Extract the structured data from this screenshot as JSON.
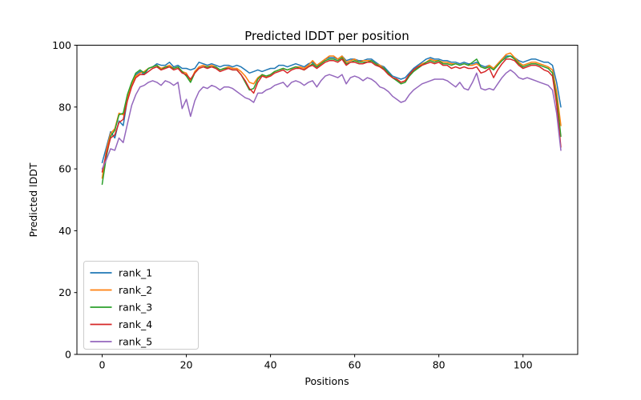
{
  "figure": {
    "background": "#ffffff",
    "title": "Predicted lDDT per position",
    "xlabel": "Positions",
    "ylabel": "Predicted lDDT"
  },
  "chart_data": {
    "type": "line",
    "title": "Predicted lDDT per position",
    "xlabel": "Positions",
    "ylabel": "Predicted lDDT",
    "xlim": [
      -6,
      113
    ],
    "ylim": [
      0,
      100
    ],
    "xticks": [
      0,
      20,
      40,
      60,
      80,
      100
    ],
    "yticks": [
      0,
      20,
      40,
      60,
      80,
      100
    ],
    "grid": false,
    "legend_position": "lower left",
    "x": [
      0,
      1,
      2,
      3,
      4,
      5,
      6,
      7,
      8,
      9,
      10,
      11,
      12,
      13,
      14,
      15,
      16,
      17,
      18,
      19,
      20,
      21,
      22,
      23,
      24,
      25,
      26,
      27,
      28,
      29,
      30,
      31,
      32,
      33,
      34,
      35,
      36,
      37,
      38,
      39,
      40,
      41,
      42,
      43,
      44,
      45,
      46,
      47,
      48,
      49,
      50,
      51,
      52,
      53,
      54,
      55,
      56,
      57,
      58,
      59,
      60,
      61,
      62,
      63,
      64,
      65,
      66,
      67,
      68,
      69,
      70,
      71,
      72,
      73,
      74,
      75,
      76,
      77,
      78,
      79,
      80,
      81,
      82,
      83,
      84,
      85,
      86,
      87,
      88,
      89,
      90,
      91,
      92,
      93,
      94,
      95,
      96,
      97,
      98,
      99,
      100,
      101,
      102,
      103,
      104,
      105,
      106,
      107,
      108,
      109
    ],
    "series": [
      {
        "name": "rank_1",
        "color": "#1f77b4",
        "values": [
          62,
          67,
          72,
          70,
          75.5,
          74,
          82.5,
          87.5,
          90.5,
          91.5,
          90.5,
          92.5,
          93,
          94,
          93.5,
          93.5,
          94.5,
          93,
          93.5,
          92.5,
          92.5,
          92,
          92.5,
          94.5,
          94,
          93.5,
          94,
          93.5,
          93,
          93.5,
          93.5,
          93,
          93.5,
          93,
          92,
          91,
          91.5,
          92,
          91.5,
          92,
          92.5,
          92.5,
          93.5,
          93.5,
          93,
          93.5,
          94,
          93.5,
          93,
          94,
          94.5,
          93.5,
          94.5,
          95.5,
          96,
          96,
          95.5,
          96.5,
          95,
          95.5,
          95.5,
          95,
          95,
          95.5,
          95.5,
          94.5,
          93.5,
          93,
          91.5,
          90,
          89.5,
          89,
          89.5,
          91,
          92.5,
          93.5,
          94.5,
          95.5,
          96,
          95.5,
          95.5,
          95,
          95,
          94.5,
          94.5,
          94,
          94.5,
          94,
          94,
          94.5,
          93.5,
          93,
          93.5,
          92.5,
          94,
          95.5,
          96.5,
          96.5,
          96,
          95,
          94.5,
          95,
          95.5,
          95.5,
          95,
          94.5,
          94.5,
          93.5,
          88,
          80
        ]
      },
      {
        "name": "rank_2",
        "color": "#ff7f0e",
        "values": [
          57,
          66,
          71.5,
          73,
          78,
          77.5,
          83,
          87.5,
          90,
          91,
          91.5,
          92.5,
          93,
          93.5,
          92.5,
          93,
          93.5,
          92.5,
          93,
          91.5,
          91,
          88.5,
          91.5,
          93,
          93.5,
          93,
          93.5,
          93,
          92,
          92.5,
          93,
          92.5,
          92.5,
          91.5,
          90,
          88,
          87.5,
          89.5,
          90.5,
          89.5,
          90.5,
          91.5,
          92,
          92.5,
          92,
          92.5,
          93,
          93,
          92.5,
          93.5,
          95,
          93.5,
          94.5,
          95.5,
          96.5,
          96.5,
          95.5,
          96.5,
          94.5,
          95,
          95.5,
          94.5,
          95,
          95,
          95,
          94,
          93.5,
          92.5,
          91,
          89.5,
          89,
          88,
          88.5,
          90.5,
          92,
          93,
          94,
          94.5,
          95.5,
          95,
          95,
          94.5,
          94.5,
          94,
          94,
          93.5,
          94,
          93.5,
          93.5,
          94,
          93,
          92.5,
          93.5,
          92.5,
          94,
          95.5,
          97,
          97.5,
          96,
          94.5,
          93.5,
          94,
          94.5,
          94.5,
          94,
          93.5,
          93,
          92,
          85,
          74
        ]
      },
      {
        "name": "rank_3",
        "color": "#2ca02c",
        "values": [
          55,
          64,
          70.5,
          72.5,
          77.5,
          78,
          84,
          88,
          91,
          92,
          91,
          92.5,
          93,
          93.5,
          92,
          93,
          93,
          92.5,
          93,
          91.5,
          90,
          88,
          91,
          92.5,
          93,
          93,
          93,
          93,
          92,
          92.5,
          92.5,
          92,
          92,
          90.5,
          88,
          85.5,
          86,
          89,
          90.5,
          90,
          90.5,
          91.5,
          92,
          92.5,
          92,
          92.5,
          93,
          92.5,
          92,
          93,
          94,
          93,
          94,
          95,
          95.5,
          95.5,
          95,
          96,
          94,
          94.5,
          95,
          94.5,
          94.5,
          94.5,
          95,
          94,
          93,
          92.5,
          91,
          89.5,
          88.5,
          87.5,
          88,
          90,
          91.5,
          92.5,
          93.5,
          94.5,
          95,
          94.5,
          95,
          94,
          94,
          93.5,
          94,
          93.5,
          94,
          93.5,
          94.5,
          95.5,
          93,
          92.5,
          93,
          92,
          93.5,
          95,
          96,
          96.5,
          95.5,
          94,
          93,
          93.5,
          94,
          94,
          93.5,
          93,
          92.5,
          91,
          83,
          70.5
        ]
      },
      {
        "name": "rank_4",
        "color": "#d62728",
        "values": [
          59,
          65,
          70,
          71,
          75,
          76,
          82,
          86.5,
          89.5,
          90.5,
          90.5,
          91.5,
          92.5,
          93,
          92,
          92.5,
          93,
          92,
          92.5,
          91,
          90.5,
          89,
          91,
          92.5,
          93,
          92.5,
          93,
          92.5,
          91.5,
          92,
          92.5,
          92,
          92,
          90.5,
          88.5,
          86,
          84.5,
          88,
          90,
          89.5,
          90,
          91,
          91.5,
          92,
          91,
          92,
          92.5,
          92.5,
          92,
          93,
          93.5,
          92.5,
          93.5,
          94.5,
          95,
          95,
          94.5,
          95.5,
          93.5,
          94.5,
          94.5,
          94,
          94,
          94.5,
          94.5,
          93.5,
          93,
          92,
          90.5,
          89.5,
          89,
          88,
          88.5,
          90.5,
          92,
          93,
          93.5,
          94,
          94.5,
          94,
          94.5,
          93.5,
          93.5,
          92.5,
          93,
          92.5,
          93,
          92.5,
          92.5,
          93,
          91,
          91.5,
          92.5,
          89.5,
          92,
          94,
          95.5,
          95.5,
          95,
          93.5,
          92.5,
          93,
          93.5,
          93.5,
          93,
          92,
          91.5,
          90,
          81,
          67
        ]
      },
      {
        "name": "rank_5",
        "color": "#9467bd",
        "values": [
          60,
          63,
          66.5,
          66,
          70,
          68.5,
          74.5,
          80.5,
          84,
          86.5,
          87,
          88,
          88.5,
          88,
          87,
          88.5,
          88,
          87,
          88,
          79.5,
          82.5,
          77,
          82,
          85,
          86.5,
          86,
          87,
          86.5,
          85.5,
          86.5,
          86.5,
          86,
          85,
          84,
          83,
          82.5,
          81.5,
          84.5,
          84.5,
          85.5,
          86,
          87,
          87.5,
          88,
          86.5,
          88,
          88.5,
          88,
          87,
          88,
          88.5,
          86.5,
          88.5,
          90,
          90.5,
          90,
          89.5,
          90.5,
          87.5,
          89.5,
          90,
          89.5,
          88.5,
          89.5,
          89,
          88,
          86.5,
          86,
          85,
          83.5,
          82.5,
          81.5,
          82,
          84,
          85.5,
          86.5,
          87.5,
          88,
          88.5,
          89,
          89,
          89,
          88.5,
          87.5,
          86.5,
          88,
          86,
          85.5,
          88,
          91,
          86,
          85.5,
          86,
          85.5,
          87.5,
          89.5,
          91,
          92,
          91,
          89.5,
          89,
          89.5,
          89,
          88.5,
          88,
          87.5,
          87,
          85.5,
          78,
          66
        ]
      }
    ]
  }
}
